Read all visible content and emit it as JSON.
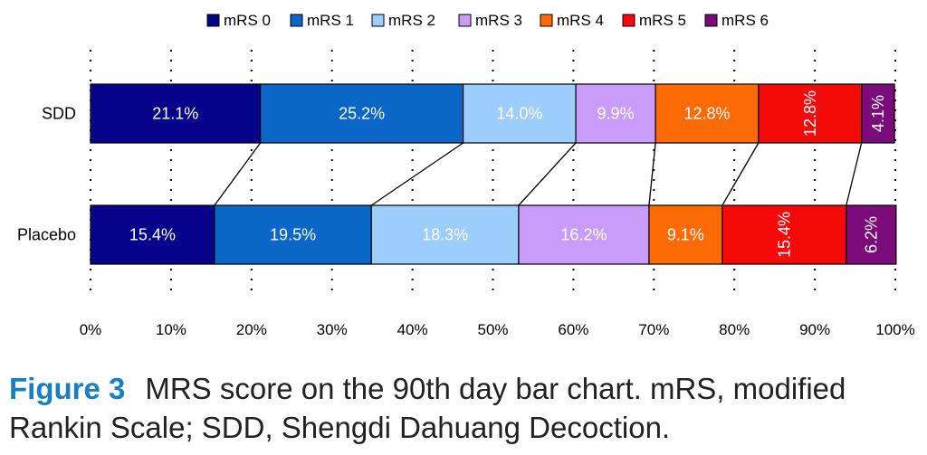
{
  "chart_data": {
    "type": "bar",
    "orientation": "horizontal",
    "stacked": true,
    "normalized": true,
    "categories": [
      "SDD",
      "Placebo"
    ],
    "series": [
      {
        "name": "mRS 0",
        "color": "#06038a",
        "values": [
          21.1,
          15.4
        ],
        "labels": [
          "21.1%",
          "15.4%"
        ]
      },
      {
        "name": "mRS 1",
        "color": "#0a67c8",
        "values": [
          25.2,
          19.5
        ],
        "labels": [
          "25.2%",
          "19.5%"
        ]
      },
      {
        "name": "mRS 2",
        "color": "#9ccdfb",
        "values": [
          14.0,
          18.3
        ],
        "labels": [
          "14.0%",
          "18.3%"
        ]
      },
      {
        "name": "mRS 3",
        "color": "#c89cf8",
        "values": [
          9.9,
          16.2
        ],
        "labels": [
          "9.9%",
          "16.2%"
        ]
      },
      {
        "name": "mRS 4",
        "color": "#fd6b07",
        "values": [
          12.8,
          9.1
        ],
        "labels": [
          "12.8%",
          "9.1%"
        ]
      },
      {
        "name": "mRS 5",
        "color": "#f50a0a",
        "values": [
          12.8,
          15.4
        ],
        "labels": [
          "12.8%",
          "15.4%"
        ]
      },
      {
        "name": "mRS 6",
        "color": "#7b0a7b",
        "values": [
          4.1,
          6.2
        ],
        "labels": [
          "4.1%",
          "6.2%"
        ]
      }
    ],
    "x_ticks": [
      "0%",
      "10%",
      "20%",
      "30%",
      "40%",
      "50%",
      "60%",
      "70%",
      "80%",
      "90%",
      "100%"
    ],
    "xlim": [
      0,
      100
    ],
    "legend_position": "top",
    "grid": "dotted vertical",
    "vertical_labels": {
      "SDD": [
        "mRS 5",
        "mRS 6"
      ],
      "Placebo": [
        "mRS 5",
        "mRS 6"
      ]
    }
  },
  "caption": {
    "label": "Figure 3",
    "text": "MRS score on the 90th day bar chart. mRS, modified Rankin Scale; SDD, Shengdi Dahuang Decoction."
  }
}
